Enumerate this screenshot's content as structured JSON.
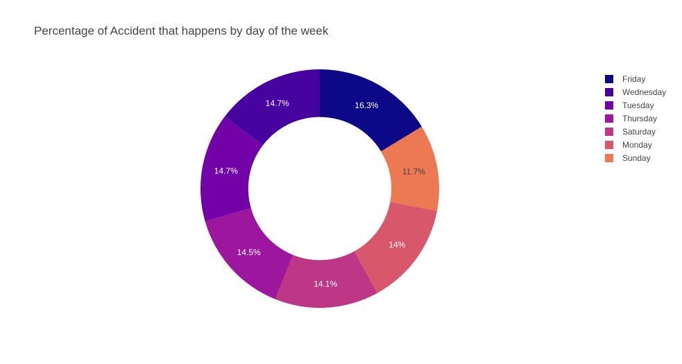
{
  "chart_data": {
    "type": "pie",
    "title": "Percentage of Accident that happens by day of the week",
    "hole": 0.6,
    "direction": "clockwise",
    "legend_position": "right",
    "slices": [
      {
        "label": "Friday",
        "value": 16.3,
        "text": "16.3%",
        "color": "#0d0887",
        "text_color": "#ffffff"
      },
      {
        "label": "Sunday",
        "value": 11.7,
        "text": "11.7%",
        "color": "#ed7953",
        "text_color": "#444444"
      },
      {
        "label": "Monday",
        "value": 14.0,
        "text": "14%",
        "color": "#d8576b",
        "text_color": "#ffffff"
      },
      {
        "label": "Saturday",
        "value": 14.1,
        "text": "14.1%",
        "color": "#bd3786",
        "text_color": "#ffffff"
      },
      {
        "label": "Thursday",
        "value": 14.5,
        "text": "14.5%",
        "color": "#9c179e",
        "text_color": "#ffffff"
      },
      {
        "label": "Tuesday",
        "value": 14.7,
        "text": "14.7%",
        "color": "#7201a8",
        "text_color": "#ffffff"
      },
      {
        "label": "Wednesday",
        "value": 14.7,
        "text": "14.7%",
        "color": "#46039f",
        "text_color": "#ffffff"
      }
    ],
    "legend": [
      {
        "label": "Friday",
        "color": "#0d0887"
      },
      {
        "label": "Wednesday",
        "color": "#46039f"
      },
      {
        "label": "Tuesday",
        "color": "#7201a8"
      },
      {
        "label": "Thursday",
        "color": "#9c179e"
      },
      {
        "label": "Saturday",
        "color": "#bd3786"
      },
      {
        "label": "Monday",
        "color": "#d8576b"
      },
      {
        "label": "Sunday",
        "color": "#ed7953"
      }
    ]
  }
}
